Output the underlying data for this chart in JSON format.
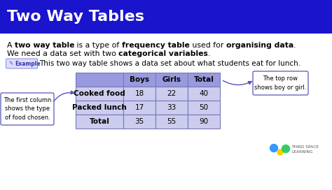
{
  "title": "Two Way Tables",
  "title_bg": "#1a14cc",
  "title_color": "#FFFFFF",
  "bg_color": "#FFFFFF",
  "para1_parts": [
    {
      "text": "A ",
      "bold": false
    },
    {
      "text": "two way table",
      "bold": true
    },
    {
      "text": " is a type of ",
      "bold": false
    },
    {
      "text": "frequency table",
      "bold": true
    },
    {
      "text": " used for ",
      "bold": false
    },
    {
      "text": "organising data",
      "bold": true
    },
    {
      "text": ".",
      "bold": false
    }
  ],
  "para2_parts": [
    {
      "text": "We need a data set with two ",
      "bold": false
    },
    {
      "text": "categorical variables",
      "bold": true
    },
    {
      "text": ".",
      "bold": false
    }
  ],
  "example_label": "Example",
  "example_text": "This two way table shows a data set about what students eat for lunch.",
  "table_header": [
    "",
    "Boys",
    "Girls",
    "Total"
  ],
  "table_rows": [
    [
      "Cooked food",
      "18",
      "22",
      "40"
    ],
    [
      "Packed lunch",
      "17",
      "33",
      "50"
    ],
    [
      "Total",
      "35",
      "55",
      "90"
    ]
  ],
  "table_header_bg": "#9999DD",
  "table_row_bg": "#CCCCEE",
  "table_border": "#7777BB",
  "left_note": "The first column\nshows the type\nof food chosen.",
  "right_note": "The top row\nshows boy or girl.",
  "note_box_color": "#FFFFFF",
  "note_border_color": "#5555BB",
  "arrow_color": "#5555BB",
  "font_size_title": 16,
  "font_size_body": 7.8,
  "font_size_table": 7.5,
  "font_size_example": 7.5,
  "logo_blue": "#3399FF",
  "logo_yellow": "#FFCC00",
  "logo_green": "#33CC66",
  "logo_text_color": "#555555"
}
